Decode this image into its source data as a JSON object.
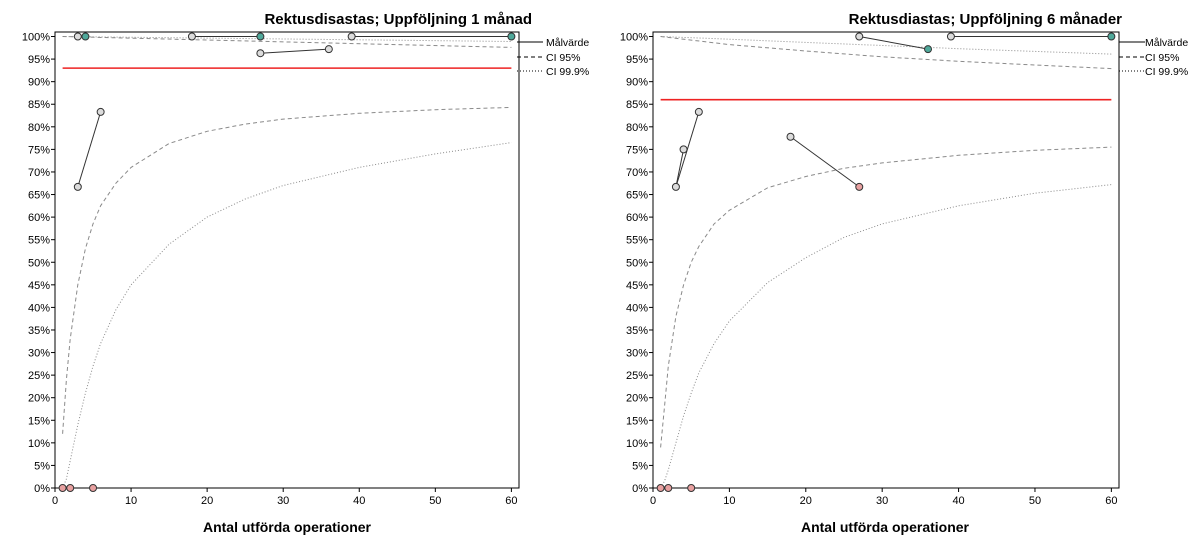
{
  "chart_data": [
    {
      "type": "scatter",
      "title": "Rektusdisastas; Uppföljning 1 månad",
      "xlabel": "Antal utförda operationer",
      "ylabel": "",
      "xlim": [
        0,
        61
      ],
      "ylim": [
        0,
        101
      ],
      "xticks": [
        0,
        10,
        20,
        30,
        40,
        50,
        60
      ],
      "yticks": [
        0,
        5,
        10,
        15,
        20,
        25,
        30,
        35,
        40,
        45,
        50,
        55,
        60,
        65,
        70,
        75,
        80,
        85,
        90,
        95,
        100
      ],
      "tick_suffix": "%",
      "grid": false,
      "target_value": 93,
      "legend": {
        "placement": "right-top",
        "entries": [
          {
            "label": "Målvärde",
            "style": "solid"
          },
          {
            "label": "CI 95%",
            "style": "dashed"
          },
          {
            "label": "CI 99.9%",
            "style": "dotted"
          }
        ]
      },
      "ci95": {
        "x": [
          1,
          1.5,
          2,
          3,
          4,
          5,
          6,
          8,
          10,
          15,
          20,
          25,
          30,
          40,
          50,
          60
        ],
        "y": [
          12,
          24,
          33,
          45,
          53,
          58.5,
          62.5,
          67.5,
          71,
          76.3,
          79,
          80.6,
          81.7,
          83,
          83.8,
          84.3
        ]
      },
      "ci999": {
        "x": [
          1,
          1.5,
          2,
          3,
          4,
          5,
          6,
          8,
          10,
          15,
          20,
          25,
          30,
          40,
          50,
          60
        ],
        "y": [
          0,
          2,
          6,
          14,
          21,
          27,
          32,
          39.5,
          45,
          54,
          60,
          64,
          67,
          71,
          74,
          76.5
        ]
      },
      "ci95_upper": {
        "x": [
          1,
          60
        ],
        "y": [
          100,
          97.6
        ]
      },
      "ci999_upper": {
        "x": [
          1,
          60
        ],
        "y": [
          100,
          98.9
        ]
      },
      "segments": [
        {
          "x1": 3,
          "y1": 66.7,
          "x2": 6,
          "y2": 83.3
        },
        {
          "x1": 3,
          "y1": 100,
          "x2": 4,
          "y2": 100
        },
        {
          "x1": 18,
          "y1": 100,
          "x2": 27,
          "y2": 100
        },
        {
          "x1": 27,
          "y1": 96.3,
          "x2": 36,
          "y2": 97.2
        },
        {
          "x1": 39,
          "y1": 100,
          "x2": 60,
          "y2": 100
        }
      ],
      "points": [
        {
          "x": 1,
          "y": 0,
          "color": "#e8a0a0"
        },
        {
          "x": 2,
          "y": 0,
          "color": "#e8a0a0"
        },
        {
          "x": 5,
          "y": 0,
          "color": "#e8a0a0"
        },
        {
          "x": 3,
          "y": 66.7,
          "color": "#dcdcdc"
        },
        {
          "x": 6,
          "y": 83.3,
          "color": "#dcdcdc"
        },
        {
          "x": 3,
          "y": 100,
          "color": "#dcdcdc"
        },
        {
          "x": 4,
          "y": 100,
          "color": "#4fa89a"
        },
        {
          "x": 18,
          "y": 100,
          "color": "#dcdcdc"
        },
        {
          "x": 27,
          "y": 100,
          "color": "#4fa89a"
        },
        {
          "x": 27,
          "y": 96.3,
          "color": "#dcdcdc"
        },
        {
          "x": 36,
          "y": 97.2,
          "color": "#dcdcdc"
        },
        {
          "x": 39,
          "y": 100,
          "color": "#dcdcdc"
        },
        {
          "x": 60,
          "y": 100,
          "color": "#4fa89a"
        }
      ]
    },
    {
      "type": "scatter",
      "title": "Rektusdiastas; Uppföljning 6 månader",
      "xlabel": "Antal utförda operationer",
      "ylabel": "",
      "xlim": [
        0,
        61
      ],
      "ylim": [
        0,
        101
      ],
      "xticks": [
        0,
        10,
        20,
        30,
        40,
        50,
        60
      ],
      "yticks": [
        0,
        5,
        10,
        15,
        20,
        25,
        30,
        35,
        40,
        45,
        50,
        55,
        60,
        65,
        70,
        75,
        80,
        85,
        90,
        95,
        100
      ],
      "tick_suffix": "%",
      "grid": false,
      "target_value": 86,
      "legend": {
        "placement": "right-top",
        "entries": [
          {
            "label": "Målvärde",
            "style": "solid"
          },
          {
            "label": "CI 95%",
            "style": "dashed"
          },
          {
            "label": "CI 99.9%",
            "style": "dotted"
          }
        ]
      },
      "ci95": {
        "x": [
          1,
          1.5,
          2,
          3,
          4,
          5,
          6,
          8,
          10,
          15,
          20,
          25,
          30,
          40,
          50,
          60
        ],
        "y": [
          9,
          18,
          27,
          38,
          45,
          50,
          53.5,
          58.5,
          61.5,
          66.5,
          69,
          70.8,
          72,
          73.7,
          74.8,
          75.5
        ]
      },
      "ci999": {
        "x": [
          1,
          1.5,
          2,
          3,
          4,
          5,
          6,
          8,
          10,
          15,
          20,
          25,
          30,
          40,
          50,
          60
        ],
        "y": [
          0,
          1.5,
          4,
          10,
          16,
          21,
          25.5,
          32,
          37,
          45.5,
          51,
          55.5,
          58.5,
          62.5,
          65.3,
          67.2
        ]
      },
      "ci95_upper": {
        "x": [
          1,
          5,
          10,
          20,
          30,
          40,
          50,
          60
        ],
        "y": [
          100,
          99.2,
          98.2,
          96.8,
          95.5,
          94.5,
          93.7,
          92.9
        ]
      },
      "ci999_upper": {
        "x": [
          1,
          10,
          20,
          30,
          40,
          50,
          60
        ],
        "y": [
          100,
          99.4,
          98.7,
          98,
          97.3,
          96.7,
          96.1
        ]
      },
      "segments": [
        {
          "x1": 3,
          "y1": 66.7,
          "x2": 6,
          "y2": 83.3
        },
        {
          "x1": 3,
          "y1": 66.7,
          "x2": 4,
          "y2": 75
        },
        {
          "x1": 18,
          "y1": 77.8,
          "x2": 27,
          "y2": 66.7
        },
        {
          "x1": 27,
          "y1": 100,
          "x2": 36,
          "y2": 97.2
        },
        {
          "x1": 39,
          "y1": 100,
          "x2": 60,
          "y2": 100
        }
      ],
      "points": [
        {
          "x": 1,
          "y": 0,
          "color": "#e8a0a0"
        },
        {
          "x": 2,
          "y": 0,
          "color": "#e8a0a0"
        },
        {
          "x": 5,
          "y": 0,
          "color": "#e8a0a0"
        },
        {
          "x": 3,
          "y": 66.7,
          "color": "#dcdcdc"
        },
        {
          "x": 4,
          "y": 75,
          "color": "#dcdcdc"
        },
        {
          "x": 6,
          "y": 83.3,
          "color": "#dcdcdc"
        },
        {
          "x": 18,
          "y": 77.8,
          "color": "#dcdcdc"
        },
        {
          "x": 27,
          "y": 66.7,
          "color": "#e8a0a0"
        },
        {
          "x": 27,
          "y": 100,
          "color": "#dcdcdc"
        },
        {
          "x": 36,
          "y": 97.2,
          "color": "#4fa89a"
        },
        {
          "x": 39,
          "y": 100,
          "color": "#dcdcdc"
        },
        {
          "x": 60,
          "y": 100,
          "color": "#4fa89a"
        }
      ]
    }
  ]
}
